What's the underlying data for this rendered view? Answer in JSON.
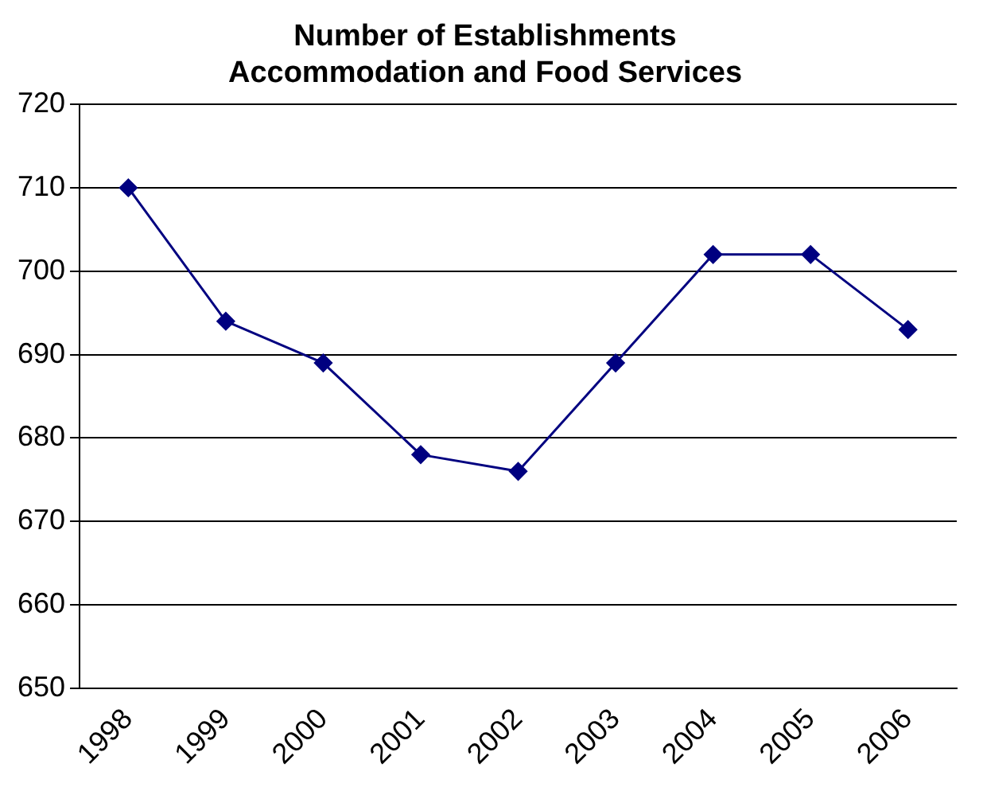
{
  "chart_data": {
    "type": "line",
    "title": "Number of Establishments",
    "subtitle": "Accommodation and Food Services",
    "categories": [
      "1998",
      "1999",
      "2000",
      "2001",
      "2002",
      "2003",
      "2004",
      "2005",
      "2006"
    ],
    "series": [
      {
        "color": "#000080",
        "values": [
          710,
          694,
          689,
          678,
          676,
          689,
          702,
          702,
          693
        ]
      }
    ],
    "ylim": [
      650,
      720
    ],
    "yticks": [
      650,
      660,
      670,
      680,
      690,
      700,
      710,
      720
    ],
    "grid": "y",
    "legend": false,
    "marker": "diamond",
    "line_style": "solid"
  }
}
